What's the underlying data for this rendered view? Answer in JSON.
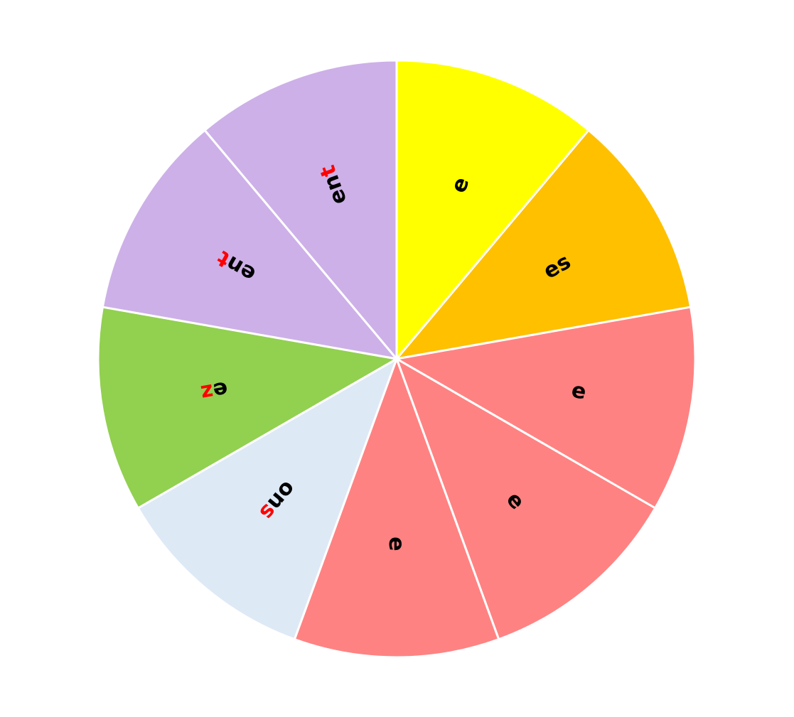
{
  "chart_data": {
    "type": "pie",
    "slices": [
      {
        "stem": "e",
        "ending": "",
        "color": "#FFFF00",
        "value": 1
      },
      {
        "stem": "es",
        "ending": "",
        "color": "#FFC000",
        "value": 1
      },
      {
        "stem": "e",
        "ending": "",
        "color": "#FF8282",
        "value": 1
      },
      {
        "stem": "e",
        "ending": "",
        "color": "#FF8282",
        "value": 1
      },
      {
        "stem": "e",
        "ending": "",
        "color": "#FF8282",
        "value": 1
      },
      {
        "stem": "on",
        "ending": "s",
        "color": "#DEE9F6",
        "value": 1
      },
      {
        "stem": "e",
        "ending": "z",
        "color": "#92D050",
        "value": 1
      },
      {
        "stem": "en",
        "ending": "t",
        "color": "#CDB0E8",
        "value": 1
      },
      {
        "stem": "en",
        "ending": "t",
        "color": "#CDB0E8",
        "value": 1
      }
    ],
    "ending_color": "#FF0000",
    "text_color": "#000000",
    "divider_color": "#FFFFFF"
  }
}
